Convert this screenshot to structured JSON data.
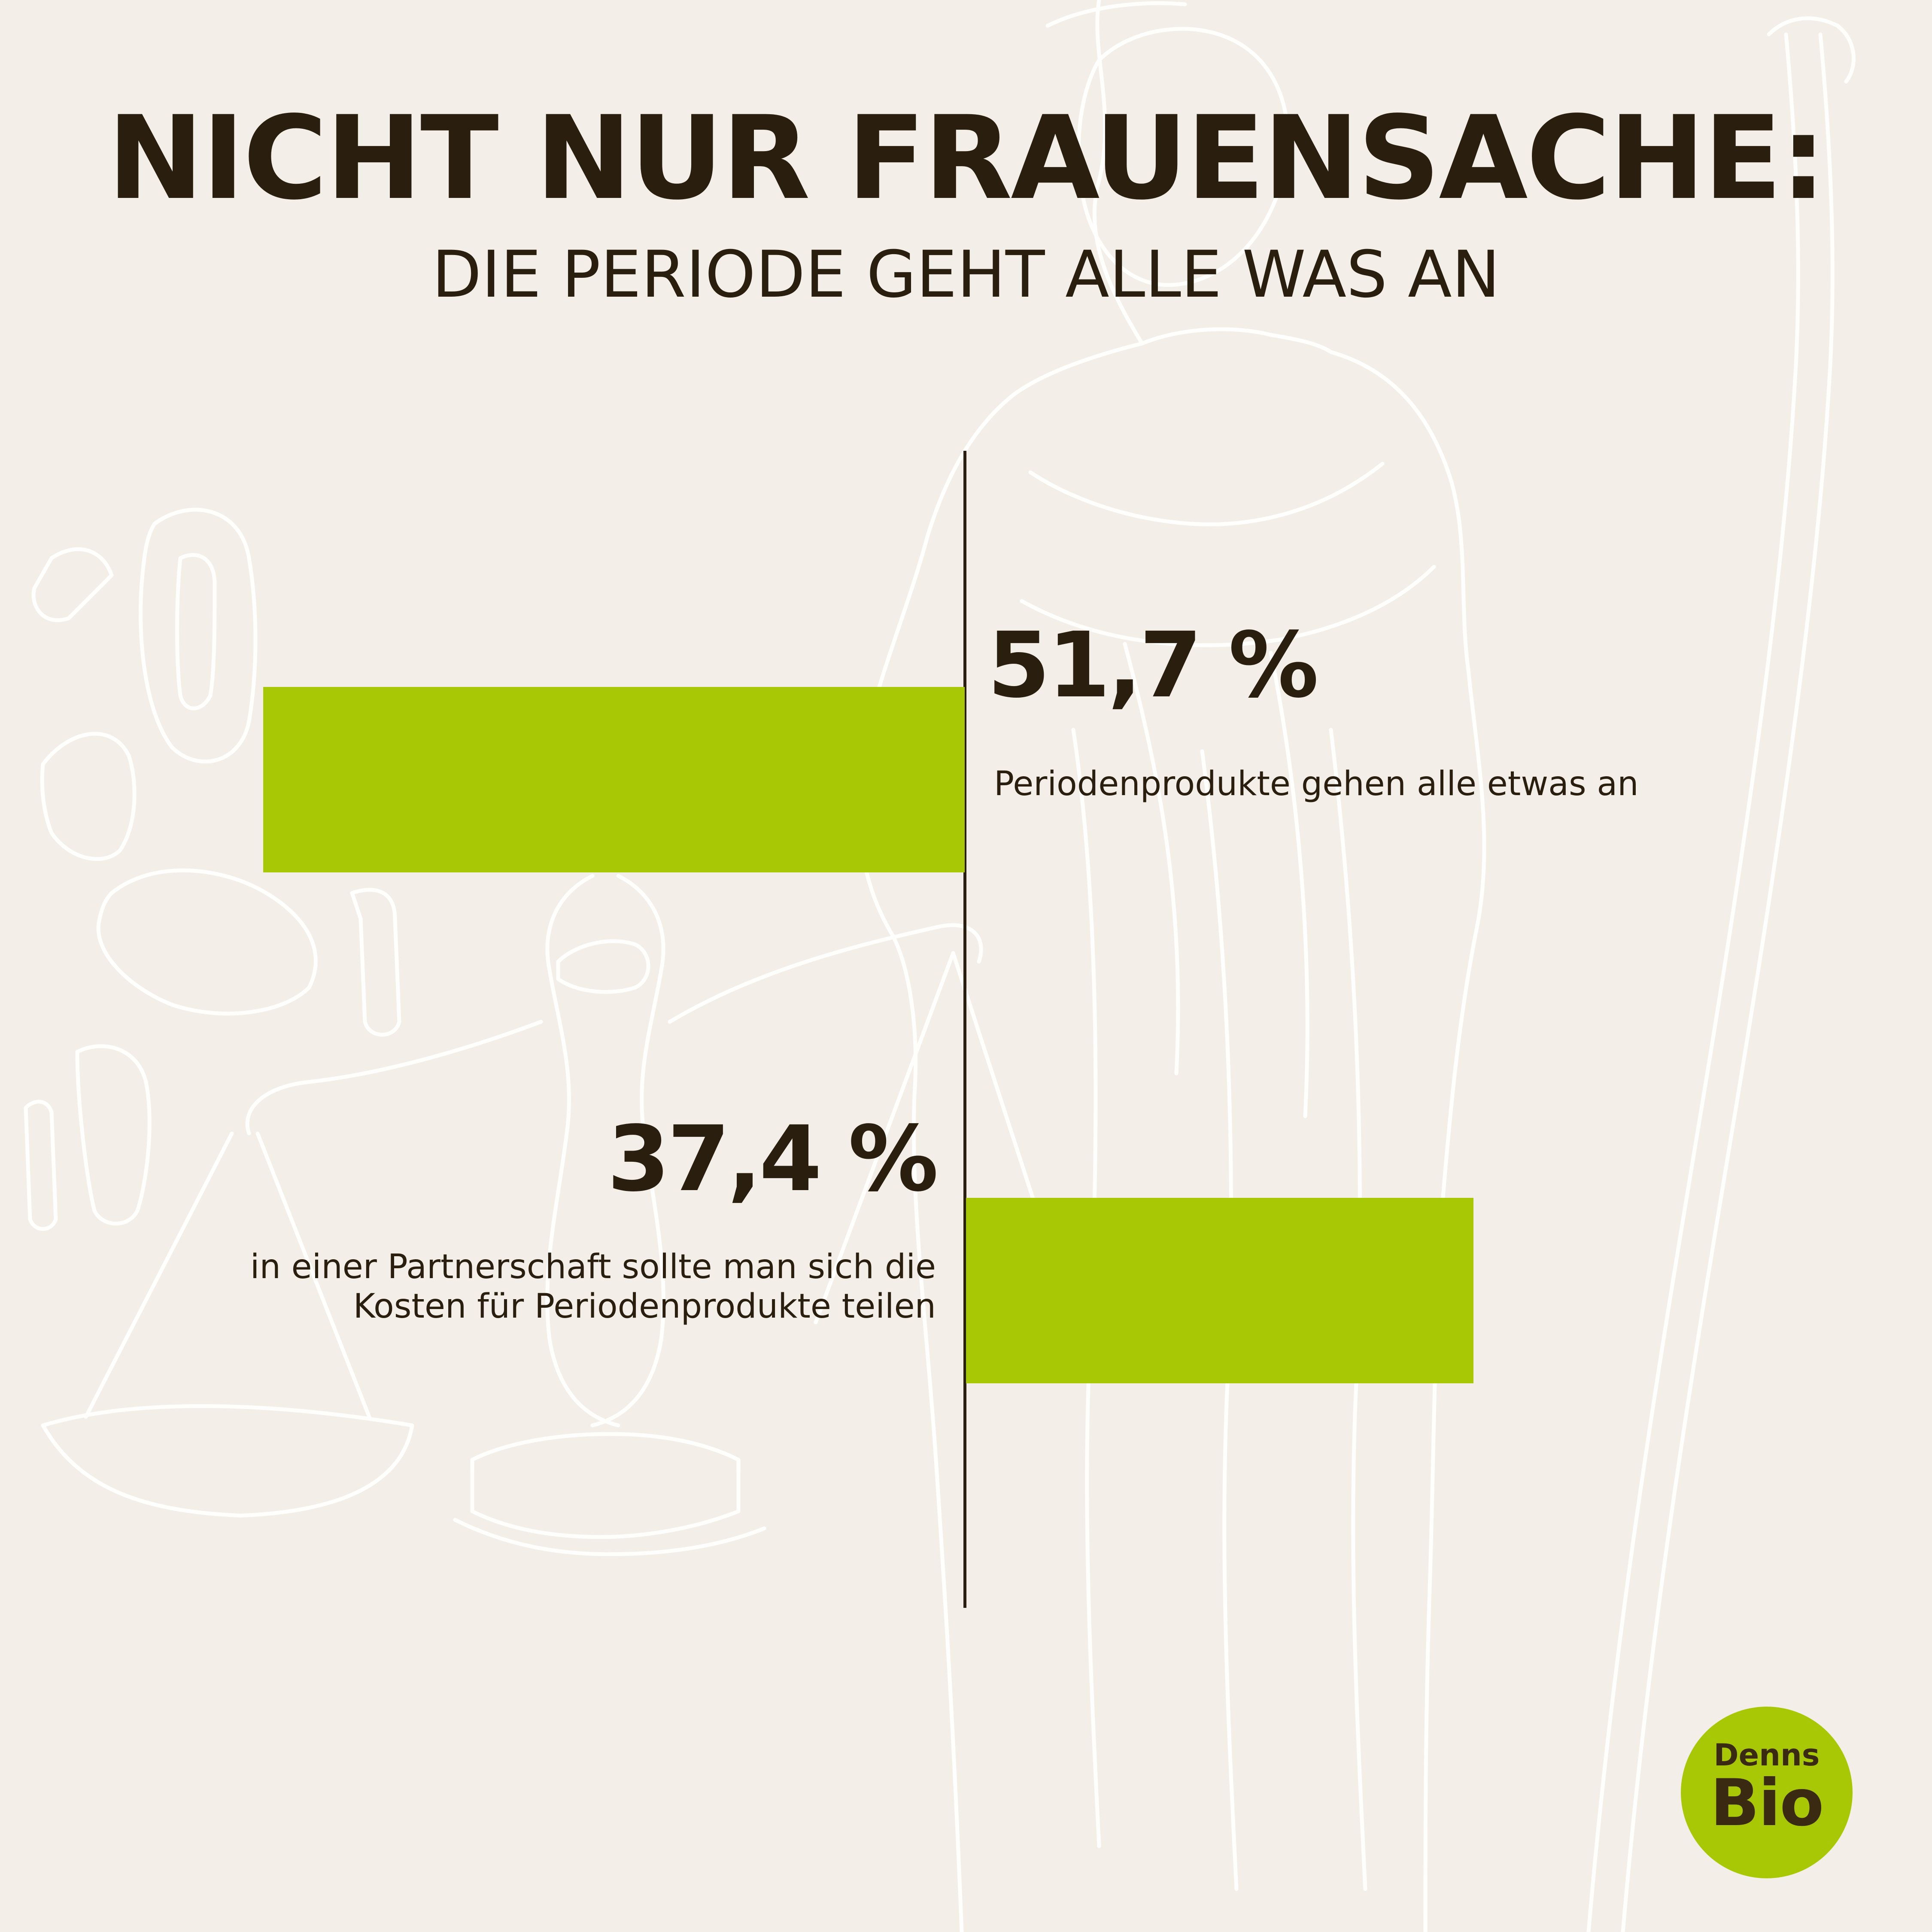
{
  "header": {
    "title": "NICHT NUR FRAUENSACHE:",
    "subtitle": "DIE PERIODE GEHT ALLE WAS AN"
  },
  "colors": {
    "background": "#f3efe8",
    "bar": "#a8c805",
    "text": "#2a1f0e",
    "line_art": "#ffffff"
  },
  "chart_data": {
    "type": "bar",
    "orientation": "horizontal",
    "title": "NICHT NUR FRAUENSACHE:",
    "subtitle": "DIE PERIODE GEHT ALLE WAS AN",
    "unit": "%",
    "xlim": [
      0,
      100
    ],
    "series": [
      {
        "values": [
          51.7,
          37.4
        ]
      }
    ],
    "bars": [
      {
        "value": 51.7,
        "value_label": "51,7 %",
        "description": "Periodenprodukte gehen alle etwas an",
        "direction": "left"
      },
      {
        "value": 37.4,
        "value_label": "37,4 %",
        "description": "in einer Partnerschaft sollte man sich die Kosten für Periodenprodukte teilen",
        "direction": "right"
      }
    ],
    "grid": false,
    "legend": "none"
  },
  "logo": {
    "top": "Denns",
    "bottom": "Bio"
  }
}
